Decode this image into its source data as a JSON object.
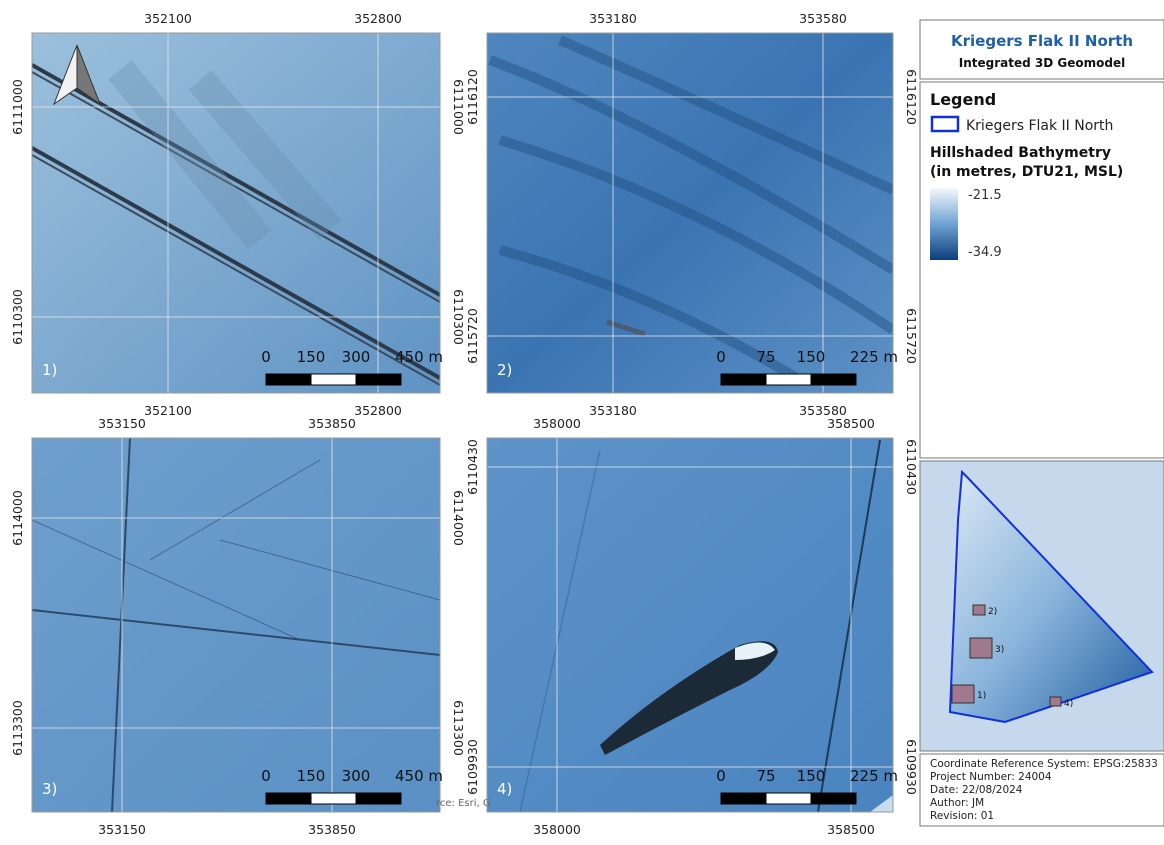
{
  "header": {
    "title": "Kriegers Flak II North",
    "subtitle": "Integrated 3D Geomodel"
  },
  "legend": {
    "title": "Legend",
    "items": [
      {
        "label": "Kriegers Flak II North"
      }
    ],
    "raster": {
      "title_lines": [
        "Hillshaded Bathymetry",
        "(in metres, DTU21, MSL)"
      ],
      "max_label": "-21.5",
      "min_label": "-34.9"
    }
  },
  "panels": [
    {
      "label": "1)",
      "x_labels": [
        352100,
        352800
      ],
      "y_labels": [
        6111000,
        6110300
      ],
      "scale_labels": [
        "0",
        "150",
        "300",
        "450 m"
      ]
    },
    {
      "label": "2)",
      "x_labels": [
        353180,
        353580
      ],
      "y_labels": [
        6116120,
        6115720
      ],
      "scale_labels": [
        "0",
        "75",
        "150",
        "225 m"
      ]
    },
    {
      "label": "3)",
      "x_labels": [
        353150,
        353850
      ],
      "y_labels": [
        6114000,
        6113300
      ],
      "scale_labels": [
        "0",
        "150",
        "300",
        "450 m"
      ],
      "attribution": "rce: Esri, G"
    },
    {
      "label": "4)",
      "x_labels": [
        358000,
        358500
      ],
      "y_labels": [
        6110430,
        6109930
      ],
      "scale_labels": [
        "0",
        "75",
        "150",
        "225 m"
      ]
    }
  ],
  "overview": {
    "labels": [
      "1)",
      "2)",
      "3)",
      "4)"
    ]
  },
  "info": {
    "lines": [
      "Coordinate Reference System: EPSG:25833",
      "Project Number: 24004",
      "Date: 22/08/2024",
      "Author: JM",
      "Revision: 01"
    ]
  }
}
